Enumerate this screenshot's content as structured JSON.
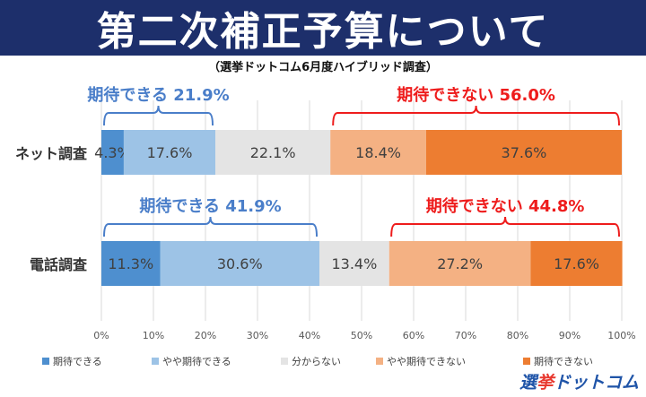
{
  "title": "第二次補正予算について",
  "subtitle": "（選挙ドットコム6月度ハイブリッド調査）",
  "colors": {
    "series": [
      "#4e8fcf",
      "#9dc3e6",
      "#e4e4e4",
      "#f4b183",
      "#ed7d31"
    ],
    "positive_group": "#4a7ec9",
    "negative_group": "#ee1c1c"
  },
  "logo": {
    "part1": "選",
    "part2": "挙",
    "part3": "ドットコム"
  },
  "chart_data": {
    "type": "bar",
    "orientation": "horizontal",
    "stacked": true,
    "categories": [
      "ネット調査",
      "電話調査"
    ],
    "series": [
      {
        "name": "期待できる",
        "values": [
          4.3,
          11.3
        ],
        "labels": [
          "4.3%",
          "11.3%"
        ]
      },
      {
        "name": "やや期待できる",
        "values": [
          17.6,
          30.6
        ],
        "labels": [
          "17.6%",
          "30.6%"
        ]
      },
      {
        "name": "分からない",
        "values": [
          22.1,
          13.4
        ],
        "labels": [
          "22.1%",
          "13.4%"
        ]
      },
      {
        "name": "やや期待できない",
        "values": [
          18.4,
          27.2
        ],
        "labels": [
          "18.4%",
          "27.2%"
        ]
      },
      {
        "name": "期待できない",
        "values": [
          37.6,
          17.6
        ],
        "labels": [
          "37.6%",
          "17.6%"
        ]
      }
    ],
    "groups": [
      [
        {
          "text": "期待できる 21.9%",
          "from": 0,
          "to": 21.9,
          "side": "positive"
        },
        {
          "text": "期待できない 56.0%",
          "from": 44.0,
          "to": 100,
          "side": "negative"
        }
      ],
      [
        {
          "text": "期待できる 41.9%",
          "from": 0,
          "to": 41.9,
          "side": "positive"
        },
        {
          "text": "期待できない 44.8%",
          "from": 55.2,
          "to": 100,
          "side": "negative"
        }
      ]
    ],
    "xlim": [
      0,
      100
    ],
    "xticks": [
      "0%",
      "10%",
      "20%",
      "30%",
      "40%",
      "50%",
      "60%",
      "70%",
      "80%",
      "90%",
      "100%"
    ],
    "grid": true,
    "legend_position": "bottom"
  }
}
